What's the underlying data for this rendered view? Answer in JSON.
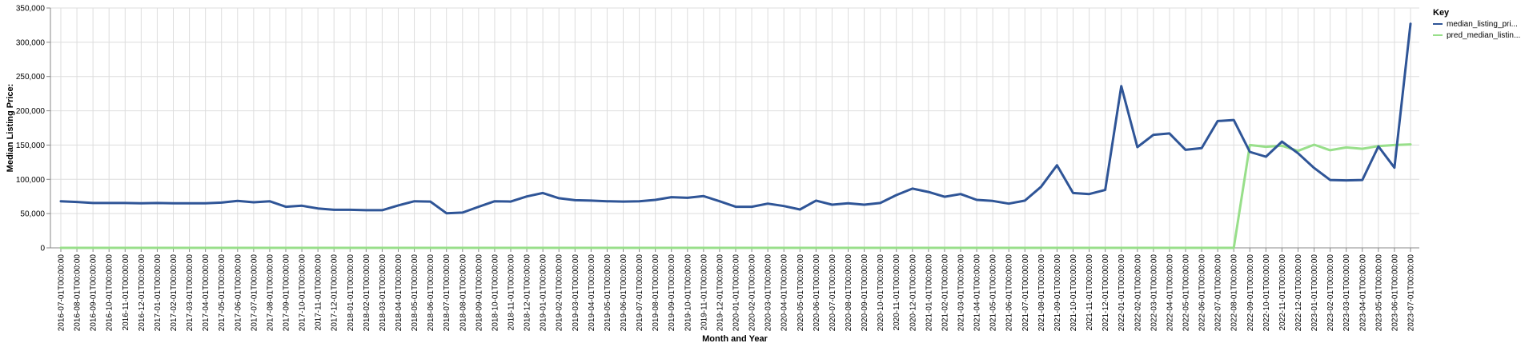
{
  "chart_data": {
    "type": "line",
    "title": "",
    "xlabel": "Month and Year",
    "ylabel": "Median Listing Price:",
    "ylim": [
      0,
      350000
    ],
    "yticks": [
      {
        "value": 0,
        "label": "0"
      },
      {
        "value": 50000,
        "label": "50,000"
      },
      {
        "value": 100000,
        "label": "100,000"
      },
      {
        "value": 150000,
        "label": "150,000"
      },
      {
        "value": 200000,
        "label": "200,000"
      },
      {
        "value": 250000,
        "label": "250,000"
      },
      {
        "value": 300000,
        "label": "300,000"
      },
      {
        "value": 350000,
        "label": "350,000"
      }
    ],
    "grid": true,
    "legend": {
      "title": "Key",
      "position": "top-right"
    },
    "x": [
      "2016-07-01T00:00:00",
      "2016-08-01T00:00:00",
      "2016-09-01T00:00:00",
      "2016-10-01T00:00:00",
      "2016-11-01T00:00:00",
      "2016-12-01T00:00:00",
      "2017-01-01T00:00:00",
      "2017-02-01T00:00:00",
      "2017-03-01T00:00:00",
      "2017-04-01T00:00:00",
      "2017-05-01T00:00:00",
      "2017-06-01T00:00:00",
      "2017-07-01T00:00:00",
      "2017-08-01T00:00:00",
      "2017-09-01T00:00:00",
      "2017-10-01T00:00:00",
      "2017-11-01T00:00:00",
      "2017-12-01T00:00:00",
      "2018-01-01T00:00:00",
      "2018-02-01T00:00:00",
      "2018-03-01T00:00:00",
      "2018-04-01T00:00:00",
      "2018-05-01T00:00:00",
      "2018-06-01T00:00:00",
      "2018-07-01T00:00:00",
      "2018-08-01T00:00:00",
      "2018-09-01T00:00:00",
      "2018-10-01T00:00:00",
      "2018-11-01T00:00:00",
      "2018-12-01T00:00:00",
      "2019-01-01T00:00:00",
      "2019-02-01T00:00:00",
      "2019-03-01T00:00:00",
      "2019-04-01T00:00:00",
      "2019-05-01T00:00:00",
      "2019-06-01T00:00:00",
      "2019-07-01T00:00:00",
      "2019-08-01T00:00:00",
      "2019-09-01T00:00:00",
      "2019-10-01T00:00:00",
      "2019-11-01T00:00:00",
      "2019-12-01T00:00:00",
      "2020-01-01T00:00:00",
      "2020-02-01T00:00:00",
      "2020-03-01T00:00:00",
      "2020-04-01T00:00:00",
      "2020-05-01T00:00:00",
      "2020-06-01T00:00:00",
      "2020-07-01T00:00:00",
      "2020-08-01T00:00:00",
      "2020-09-01T00:00:00",
      "2020-10-01T00:00:00",
      "2020-11-01T00:00:00",
      "2020-12-01T00:00:00",
      "2021-01-01T00:00:00",
      "2021-02-01T00:00:00",
      "2021-03-01T00:00:00",
      "2021-04-01T00:00:00",
      "2021-05-01T00:00:00",
      "2021-06-01T00:00:00",
      "2021-07-01T00:00:00",
      "2021-08-01T00:00:00",
      "2021-09-01T00:00:00",
      "2021-10-01T00:00:00",
      "2021-11-01T00:00:00",
      "2021-12-01T00:00:00",
      "2022-01-01T00:00:00",
      "2022-02-01T00:00:00",
      "2022-03-01T00:00:00",
      "2022-04-01T00:00:00",
      "2022-05-01T00:00:00",
      "2022-06-01T00:00:00",
      "2022-07-01T00:00:00",
      "2022-08-01T00:00:00",
      "2022-09-01T00:00:00",
      "2022-10-01T00:00:00",
      "2022-11-01T00:00:00",
      "2022-12-01T00:00:00",
      "2023-01-01T00:00:00",
      "2023-02-01T00:00:00",
      "2023-03-01T00:00:00",
      "2023-04-01T00:00:00",
      "2023-05-01T00:00:00",
      "2023-06-01T00:00:00",
      "2023-07-01T00:00:00"
    ],
    "series": [
      {
        "name": "median_listing_pri...",
        "color": "#2f5597",
        "values": [
          68000,
          67000,
          65500,
          65500,
          65500,
          65000,
          65500,
          65000,
          65000,
          65000,
          66000,
          68500,
          66500,
          68000,
          60000,
          61500,
          57500,
          55500,
          55500,
          55000,
          55000,
          62000,
          68000,
          67500,
          50500,
          51500,
          60000,
          68000,
          67500,
          75000,
          80000,
          72500,
          69500,
          69000,
          68000,
          67500,
          68000,
          70000,
          74000,
          73000,
          75500,
          68000,
          60000,
          60000,
          64500,
          61000,
          56000,
          69000,
          63000,
          65000,
          63000,
          65500,
          77000,
          86500,
          81500,
          74500,
          78500,
          70000,
          68500,
          64500,
          69000,
          89000,
          120500,
          80000,
          78500,
          84500,
          236000,
          147000,
          165000,
          167000,
          143000,
          145500,
          185000,
          186500,
          140000,
          133000,
          155000,
          138000,
          116500,
          99000,
          98500,
          99000,
          148000,
          117000,
          327000
        ]
      },
      {
        "name": "pred_median_listin...",
        "color": "#98df8a",
        "values": [
          0,
          0,
          0,
          0,
          0,
          0,
          0,
          0,
          0,
          0,
          0,
          0,
          0,
          0,
          0,
          0,
          0,
          0,
          0,
          0,
          0,
          0,
          0,
          0,
          0,
          0,
          0,
          0,
          0,
          0,
          0,
          0,
          0,
          0,
          0,
          0,
          0,
          0,
          0,
          0,
          0,
          0,
          0,
          0,
          0,
          0,
          0,
          0,
          0,
          0,
          0,
          0,
          0,
          0,
          0,
          0,
          0,
          0,
          0,
          0,
          0,
          0,
          0,
          0,
          0,
          0,
          0,
          0,
          0,
          0,
          0,
          0,
          0,
          0,
          150000,
          147500,
          149000,
          141500,
          150500,
          142500,
          146500,
          144500,
          148500,
          150000,
          151000
        ]
      }
    ]
  }
}
